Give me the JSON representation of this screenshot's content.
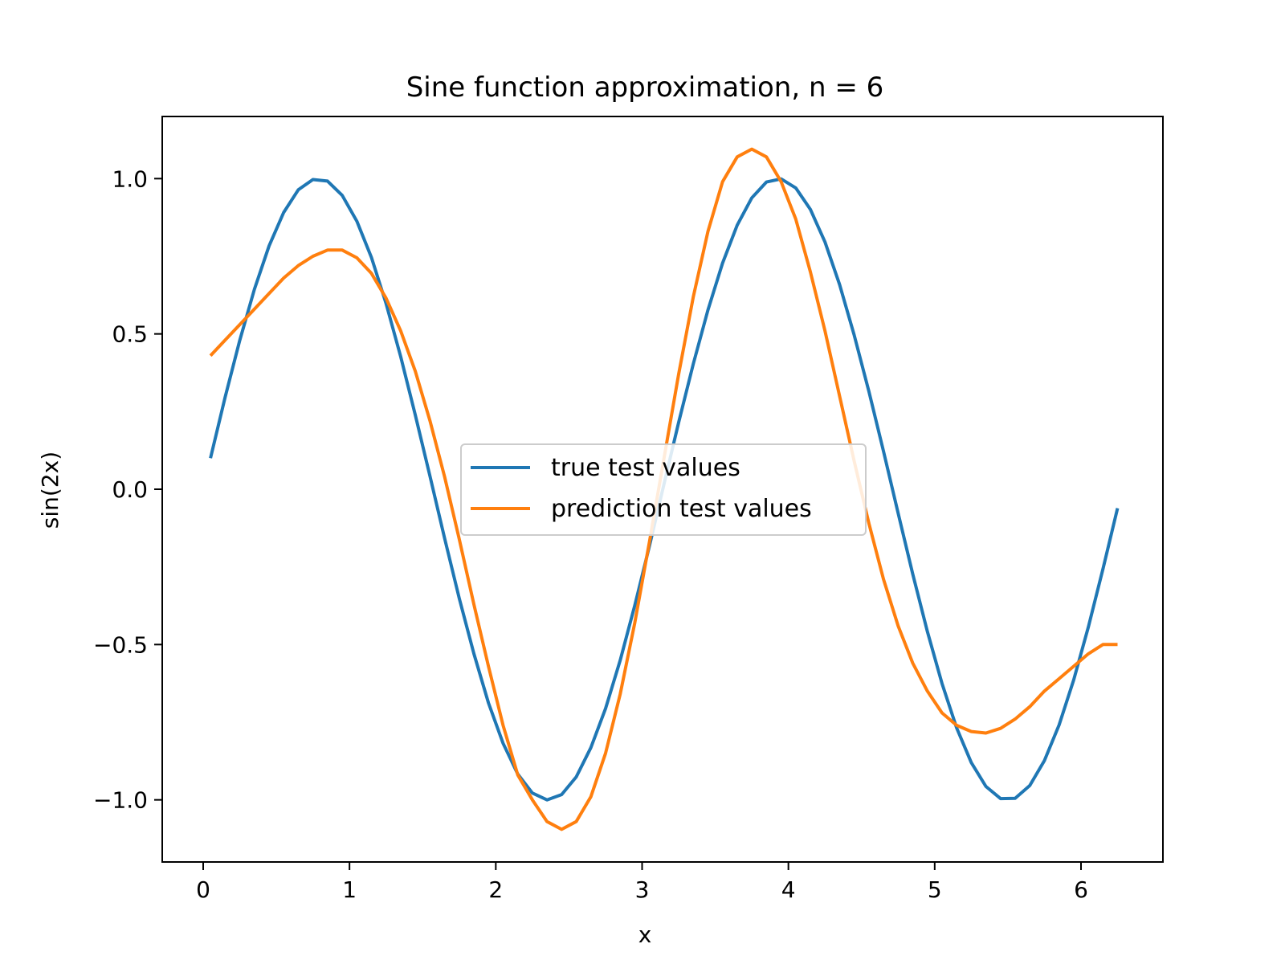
{
  "chart_data": {
    "type": "line",
    "title": "Sine function approximation, n = 6",
    "xlabel": "x",
    "ylabel": "sin(2x)",
    "xlim": [
      -0.28,
      6.56
    ],
    "ylim": [
      -1.2,
      1.2
    ],
    "xticks": [
      0,
      1,
      2,
      3,
      4,
      5,
      6
    ],
    "xtick_labels": [
      "0",
      "1",
      "2",
      "3",
      "4",
      "5",
      "6"
    ],
    "yticks": [
      -1.0,
      -0.5,
      0.0,
      0.5,
      1.0
    ],
    "ytick_labels": [
      "−1.0",
      "−0.5",
      "0.0",
      "0.5",
      "1.0"
    ],
    "grid": false,
    "legend_position": "center",
    "x": [
      0.05,
      0.15,
      0.25,
      0.35,
      0.45,
      0.55,
      0.65,
      0.75,
      0.85,
      0.95,
      1.05,
      1.15,
      1.25,
      1.35,
      1.45,
      1.55,
      1.65,
      1.75,
      1.85,
      1.95,
      2.05,
      2.15,
      2.25,
      2.35,
      2.45,
      2.55,
      2.65,
      2.75,
      2.85,
      2.95,
      3.05,
      3.15,
      3.25,
      3.35,
      3.45,
      3.55,
      3.65,
      3.75,
      3.85,
      3.95,
      4.05,
      4.15,
      4.25,
      4.35,
      4.45,
      4.55,
      4.65,
      4.75,
      4.85,
      4.95,
      5.05,
      5.15,
      5.25,
      5.35,
      5.45,
      5.55,
      5.65,
      5.75,
      5.85,
      5.95,
      6.05,
      6.15,
      6.25
    ],
    "series": [
      {
        "name": "true test values",
        "color": "#1f77b4",
        "values": [
          0.1,
          0.296,
          0.479,
          0.644,
          0.783,
          0.891,
          0.964,
          0.997,
          0.992,
          0.946,
          0.863,
          0.746,
          0.598,
          0.427,
          0.239,
          0.042,
          -0.158,
          -0.351,
          -0.529,
          -0.688,
          -0.818,
          -0.917,
          -0.978,
          -1.0,
          -0.983,
          -0.926,
          -0.832,
          -0.706,
          -0.551,
          -0.374,
          -0.183,
          0.017,
          0.215,
          0.404,
          0.577,
          0.728,
          0.85,
          0.938,
          0.989,
          0.999,
          0.97,
          0.901,
          0.796,
          0.659,
          0.496,
          0.315,
          0.122,
          -0.077,
          -0.273,
          -0.458,
          -0.625,
          -0.768,
          -0.88,
          -0.957,
          -0.996,
          -0.995,
          -0.954,
          -0.874,
          -0.759,
          -0.614,
          -0.444,
          -0.257,
          -0.061
        ]
      },
      {
        "name": "prediction test values",
        "color": "#ff7f0e",
        "values": [
          0.43,
          0.48,
          0.53,
          0.58,
          0.63,
          0.68,
          0.72,
          0.75,
          0.77,
          0.77,
          0.745,
          0.695,
          0.615,
          0.51,
          0.38,
          0.22,
          0.04,
          -0.16,
          -0.37,
          -0.57,
          -0.76,
          -0.92,
          -1.0,
          -1.07,
          -1.095,
          -1.07,
          -0.99,
          -0.85,
          -0.66,
          -0.43,
          -0.17,
          0.1,
          0.37,
          0.62,
          0.83,
          0.99,
          1.07,
          1.095,
          1.07,
          0.99,
          0.87,
          0.7,
          0.51,
          0.3,
          0.09,
          -0.11,
          -0.29,
          -0.44,
          -0.56,
          -0.65,
          -0.72,
          -0.76,
          -0.78,
          -0.785,
          -0.77,
          -0.74,
          -0.7,
          -0.65,
          -0.61,
          -0.57,
          -0.53,
          -0.5,
          -0.5
        ]
      }
    ]
  }
}
